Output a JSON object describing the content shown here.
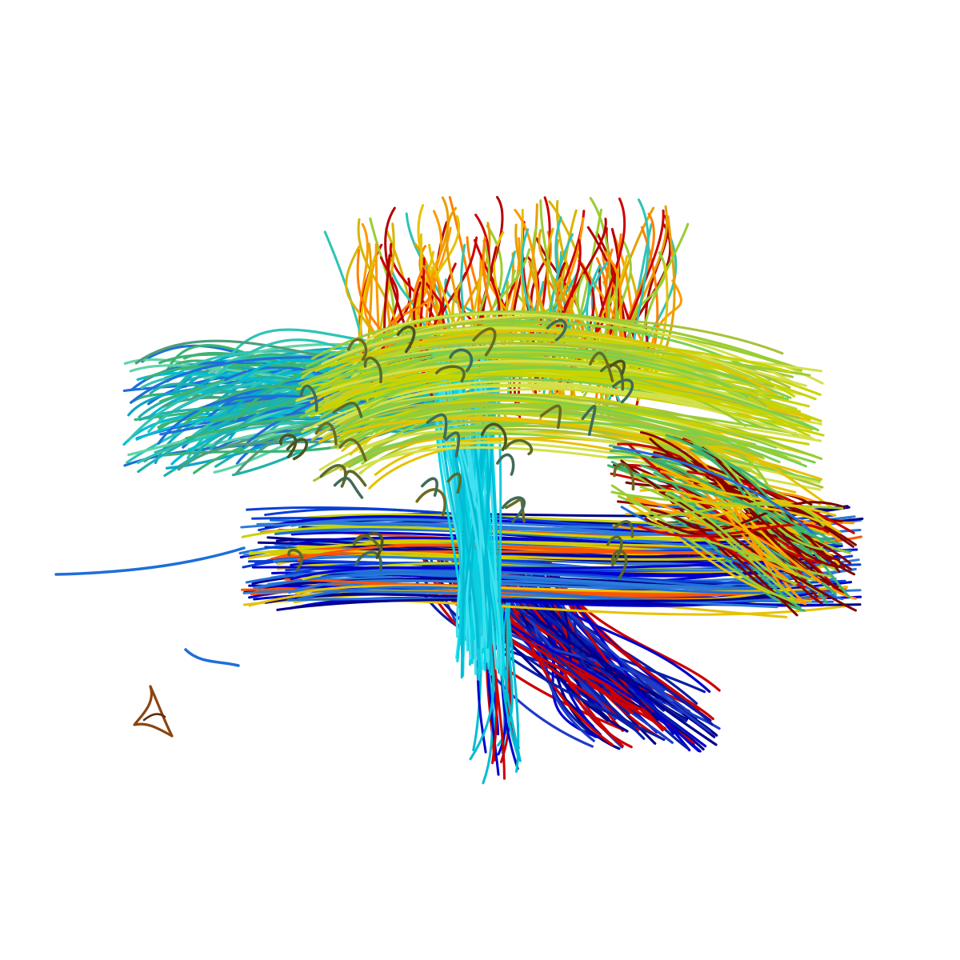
{
  "visualization": {
    "subject": "tractography",
    "render_style": "streamline tubes",
    "background_color": "#ffffff",
    "colormap": [
      "#00008b",
      "#0000cd",
      "#1e6fd9",
      "#00bcd4",
      "#2ec4b6",
      "#3cb371",
      "#9acd32",
      "#c8d400",
      "#e6c200",
      "#ff9900",
      "#ff5500",
      "#cc0000",
      "#7a0000"
    ],
    "bundles": [
      {
        "name": "anterior-fan",
        "color_family": [
          "#2ec4b6",
          "#00bcd4",
          "#3cb371",
          "#1e6fd9"
        ]
      },
      {
        "name": "superior-crown",
        "color_family": [
          "#ff9900",
          "#e6c200",
          "#cc0000",
          "#2ec4b6"
        ]
      },
      {
        "name": "central-vertical",
        "color_family": [
          "#00d5e6",
          "#00bcd4"
        ]
      },
      {
        "name": "arcuate-band",
        "color_family": [
          "#9acd32",
          "#c8d400",
          "#e6c200"
        ]
      },
      {
        "name": "posterior-fan",
        "color_family": [
          "#ff9900",
          "#cc0000",
          "#7a0000",
          "#9acd32"
        ]
      },
      {
        "name": "lateral-band",
        "color_family": [
          "#0000cd",
          "#1e6fd9",
          "#ff5500",
          "#c8d400"
        ]
      },
      {
        "name": "descending-tract",
        "color_family": [
          "#00008b",
          "#0000cd",
          "#cc0000"
        ]
      },
      {
        "name": "stray-fibers",
        "color_family": [
          "#1e6fd9",
          "#8b4513"
        ]
      }
    ]
  }
}
